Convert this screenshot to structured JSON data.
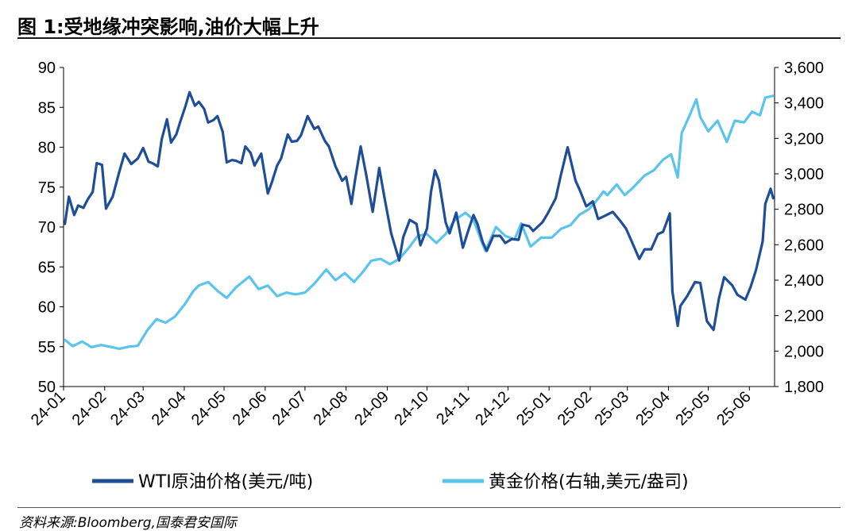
{
  "title": "图 1:受地缘冲突影响,油价大幅上升",
  "source": "资料来源:Bloomberg,国泰君安国际",
  "chart_data": {
    "type": "line",
    "x_ticks": [
      "24-01",
      "24-02",
      "24-03",
      "24-04",
      "24-05",
      "24-06",
      "24-07",
      "24-08",
      "24-09",
      "24-10",
      "24-11",
      "24-12",
      "25-01",
      "25-02",
      "25-03",
      "25-04",
      "25-05",
      "25-06"
    ],
    "x_range": [
      "2024-01-01",
      "2025-06-20"
    ],
    "y_left": {
      "range": [
        50,
        90
      ],
      "ticks": [
        "50",
        "55",
        "60",
        "65",
        "70",
        "75",
        "80",
        "85",
        "90"
      ]
    },
    "y_right": {
      "range": [
        1800,
        3600
      ],
      "ticks": [
        "1,800",
        "2,000",
        "2,200",
        "2,400",
        "2,600",
        "2,800",
        "3,000",
        "3,200",
        "3,400",
        "3,600"
      ]
    },
    "grid": false,
    "legend_position": "bottom",
    "series": [
      {
        "name": "WTI原油价格(美元/吨)",
        "axis": "left",
        "color": "#1f4e96",
        "points": [
          [
            "2024-01-02",
            70.4
          ],
          [
            "2024-01-05",
            73.8
          ],
          [
            "2024-01-09",
            71.5
          ],
          [
            "2024-01-12",
            72.7
          ],
          [
            "2024-01-16",
            72.4
          ],
          [
            "2024-01-19",
            73.4
          ],
          [
            "2024-01-23",
            74.4
          ],
          [
            "2024-01-26",
            78.0
          ],
          [
            "2024-01-30",
            77.8
          ],
          [
            "2024-02-02",
            72.3
          ],
          [
            "2024-02-07",
            73.8
          ],
          [
            "2024-02-12",
            76.9
          ],
          [
            "2024-02-16",
            79.2
          ],
          [
            "2024-02-21",
            77.9
          ],
          [
            "2024-02-26",
            78.6
          ],
          [
            "2024-03-01",
            79.9
          ],
          [
            "2024-03-05",
            78.2
          ],
          [
            "2024-03-08",
            78.0
          ],
          [
            "2024-03-12",
            77.6
          ],
          [
            "2024-03-15",
            81.0
          ],
          [
            "2024-03-19",
            83.5
          ],
          [
            "2024-03-22",
            80.6
          ],
          [
            "2024-03-26",
            81.6
          ],
          [
            "2024-03-29",
            83.2
          ],
          [
            "2024-04-02",
            85.2
          ],
          [
            "2024-04-05",
            86.9
          ],
          [
            "2024-04-09",
            85.2
          ],
          [
            "2024-04-12",
            85.7
          ],
          [
            "2024-04-16",
            84.8
          ],
          [
            "2024-04-19",
            83.1
          ],
          [
            "2024-04-23",
            83.4
          ],
          [
            "2024-04-26",
            83.9
          ],
          [
            "2024-04-30",
            81.9
          ],
          [
            "2024-05-03",
            78.1
          ],
          [
            "2024-05-07",
            78.4
          ],
          [
            "2024-05-10",
            78.3
          ],
          [
            "2024-05-14",
            78.0
          ],
          [
            "2024-05-17",
            80.1
          ],
          [
            "2024-05-21",
            79.3
          ],
          [
            "2024-05-24",
            77.7
          ],
          [
            "2024-05-29",
            79.2
          ],
          [
            "2024-06-03",
            74.2
          ],
          [
            "2024-06-06",
            75.6
          ],
          [
            "2024-06-10",
            77.7
          ],
          [
            "2024-06-13",
            78.6
          ],
          [
            "2024-06-18",
            81.6
          ],
          [
            "2024-06-21",
            80.7
          ],
          [
            "2024-06-25",
            80.8
          ],
          [
            "2024-06-28",
            81.5
          ],
          [
            "2024-07-03",
            83.9
          ],
          [
            "2024-07-08",
            82.3
          ],
          [
            "2024-07-11",
            82.6
          ],
          [
            "2024-07-16",
            80.8
          ],
          [
            "2024-07-19",
            80.1
          ],
          [
            "2024-07-24",
            77.6
          ],
          [
            "2024-07-29",
            75.8
          ],
          [
            "2024-08-01",
            76.3
          ],
          [
            "2024-08-05",
            72.9
          ],
          [
            "2024-08-08",
            76.2
          ],
          [
            "2024-08-12",
            80.1
          ],
          [
            "2024-08-16",
            76.7
          ],
          [
            "2024-08-21",
            71.9
          ],
          [
            "2024-08-26",
            77.4
          ],
          [
            "2024-08-30",
            73.6
          ],
          [
            "2024-09-04",
            69.2
          ],
          [
            "2024-09-10",
            65.8
          ],
          [
            "2024-09-13",
            68.7
          ],
          [
            "2024-09-18",
            70.9
          ],
          [
            "2024-09-23",
            70.4
          ],
          [
            "2024-09-26",
            67.7
          ],
          [
            "2024-10-01",
            69.8
          ],
          [
            "2024-10-04",
            74.4
          ],
          [
            "2024-10-07",
            77.1
          ],
          [
            "2024-10-10",
            75.8
          ],
          [
            "2024-10-15",
            70.6
          ],
          [
            "2024-10-18",
            69.2
          ],
          [
            "2024-10-23",
            71.8
          ],
          [
            "2024-10-28",
            67.4
          ],
          [
            "2024-11-01",
            69.5
          ],
          [
            "2024-11-05",
            71.5
          ],
          [
            "2024-11-08",
            70.4
          ],
          [
            "2024-11-12",
            68.1
          ],
          [
            "2024-11-15",
            67.0
          ],
          [
            "2024-11-20",
            68.9
          ],
          [
            "2024-11-25",
            68.9
          ],
          [
            "2024-11-29",
            68.0
          ],
          [
            "2024-12-04",
            68.5
          ],
          [
            "2024-12-09",
            68.4
          ],
          [
            "2024-12-12",
            70.3
          ],
          [
            "2024-12-17",
            70.1
          ],
          [
            "2024-12-20",
            69.5
          ],
          [
            "2024-12-27",
            70.6
          ],
          [
            "2024-12-31",
            71.7
          ],
          [
            "2025-01-06",
            73.6
          ],
          [
            "2025-01-10",
            76.6
          ],
          [
            "2025-01-15",
            80.0
          ],
          [
            "2025-01-21",
            75.8
          ],
          [
            "2025-01-24",
            74.7
          ],
          [
            "2025-01-29",
            72.6
          ],
          [
            "2025-02-03",
            73.2
          ],
          [
            "2025-02-07",
            71.0
          ],
          [
            "2025-02-12",
            71.4
          ],
          [
            "2025-02-18",
            71.9
          ],
          [
            "2025-02-24",
            70.7
          ],
          [
            "2025-02-28",
            69.8
          ],
          [
            "2025-03-04",
            68.3
          ],
          [
            "2025-03-10",
            66.0
          ],
          [
            "2025-03-14",
            67.2
          ],
          [
            "2025-03-19",
            67.2
          ],
          [
            "2025-03-24",
            69.1
          ],
          [
            "2025-03-28",
            69.4
          ],
          [
            "2025-04-02",
            71.7
          ],
          [
            "2025-04-04",
            61.9
          ],
          [
            "2025-04-08",
            57.6
          ],
          [
            "2025-04-10",
            60.1
          ],
          [
            "2025-04-15",
            61.3
          ],
          [
            "2025-04-21",
            63.1
          ],
          [
            "2025-04-25",
            63.0
          ],
          [
            "2025-04-30",
            58.2
          ],
          [
            "2025-05-05",
            57.1
          ],
          [
            "2025-05-09",
            61.0
          ],
          [
            "2025-05-13",
            63.7
          ],
          [
            "2025-05-19",
            62.7
          ],
          [
            "2025-05-23",
            61.5
          ],
          [
            "2025-05-29",
            60.9
          ],
          [
            "2025-06-02",
            62.5
          ],
          [
            "2025-06-06",
            64.6
          ],
          [
            "2025-06-11",
            68.2
          ],
          [
            "2025-06-13",
            72.9
          ],
          [
            "2025-06-17",
            74.8
          ],
          [
            "2025-06-19",
            73.6
          ]
        ]
      },
      {
        "name": "黄金价格(右轴,美元/盎司)",
        "axis": "right",
        "color": "#5bc4ec",
        "points": [
          [
            "2024-01-02",
            2063
          ],
          [
            "2024-01-08",
            2028
          ],
          [
            "2024-01-15",
            2054
          ],
          [
            "2024-01-22",
            2022
          ],
          [
            "2024-01-29",
            2034
          ],
          [
            "2024-02-05",
            2025
          ],
          [
            "2024-02-12",
            2013
          ],
          [
            "2024-02-19",
            2025
          ],
          [
            "2024-02-26",
            2030
          ],
          [
            "2024-03-04",
            2116
          ],
          [
            "2024-03-11",
            2180
          ],
          [
            "2024-03-18",
            2160
          ],
          [
            "2024-03-25",
            2195
          ],
          [
            "2024-04-01",
            2260
          ],
          [
            "2024-04-08",
            2340
          ],
          [
            "2024-04-12",
            2370
          ],
          [
            "2024-04-19",
            2390
          ],
          [
            "2024-04-26",
            2340
          ],
          [
            "2024-05-03",
            2300
          ],
          [
            "2024-05-10",
            2360
          ],
          [
            "2024-05-20",
            2420
          ],
          [
            "2024-05-27",
            2350
          ],
          [
            "2024-06-03",
            2370
          ],
          [
            "2024-06-10",
            2310
          ],
          [
            "2024-06-17",
            2330
          ],
          [
            "2024-06-24",
            2320
          ],
          [
            "2024-07-01",
            2330
          ],
          [
            "2024-07-08",
            2380
          ],
          [
            "2024-07-17",
            2460
          ],
          [
            "2024-07-24",
            2400
          ],
          [
            "2024-07-31",
            2440
          ],
          [
            "2024-08-07",
            2390
          ],
          [
            "2024-08-14",
            2450
          ],
          [
            "2024-08-20",
            2510
          ],
          [
            "2024-08-27",
            2520
          ],
          [
            "2024-09-03",
            2490
          ],
          [
            "2024-09-10",
            2520
          ],
          [
            "2024-09-17",
            2580
          ],
          [
            "2024-09-24",
            2650
          ],
          [
            "2024-10-01",
            2660
          ],
          [
            "2024-10-08",
            2610
          ],
          [
            "2024-10-15",
            2660
          ],
          [
            "2024-10-22",
            2740
          ],
          [
            "2024-10-30",
            2780
          ],
          [
            "2024-11-05",
            2740
          ],
          [
            "2024-11-11",
            2620
          ],
          [
            "2024-11-14",
            2565
          ],
          [
            "2024-11-22",
            2700
          ],
          [
            "2024-11-29",
            2650
          ],
          [
            "2024-12-06",
            2630
          ],
          [
            "2024-12-11",
            2720
          ],
          [
            "2024-12-18",
            2590
          ],
          [
            "2024-12-26",
            2640
          ],
          [
            "2025-01-03",
            2640
          ],
          [
            "2025-01-10",
            2690
          ],
          [
            "2025-01-17",
            2710
          ],
          [
            "2025-01-24",
            2770
          ],
          [
            "2025-01-31",
            2800
          ],
          [
            "2025-02-07",
            2860
          ],
          [
            "2025-02-11",
            2900
          ],
          [
            "2025-02-14",
            2880
          ],
          [
            "2025-02-21",
            2940
          ],
          [
            "2025-02-27",
            2880
          ],
          [
            "2025-03-05",
            2920
          ],
          [
            "2025-03-14",
            2990
          ],
          [
            "2025-03-21",
            3020
          ],
          [
            "2025-03-28",
            3080
          ],
          [
            "2025-04-03",
            3110
          ],
          [
            "2025-04-08",
            2980
          ],
          [
            "2025-04-11",
            3230
          ],
          [
            "2025-04-17",
            3330
          ],
          [
            "2025-04-22",
            3420
          ],
          [
            "2025-04-25",
            3320
          ],
          [
            "2025-05-01",
            3240
          ],
          [
            "2025-05-08",
            3300
          ],
          [
            "2025-05-15",
            3180
          ],
          [
            "2025-05-21",
            3300
          ],
          [
            "2025-05-28",
            3290
          ],
          [
            "2025-06-03",
            3350
          ],
          [
            "2025-06-09",
            3330
          ],
          [
            "2025-06-13",
            3430
          ],
          [
            "2025-06-19",
            3440
          ]
        ]
      }
    ]
  }
}
